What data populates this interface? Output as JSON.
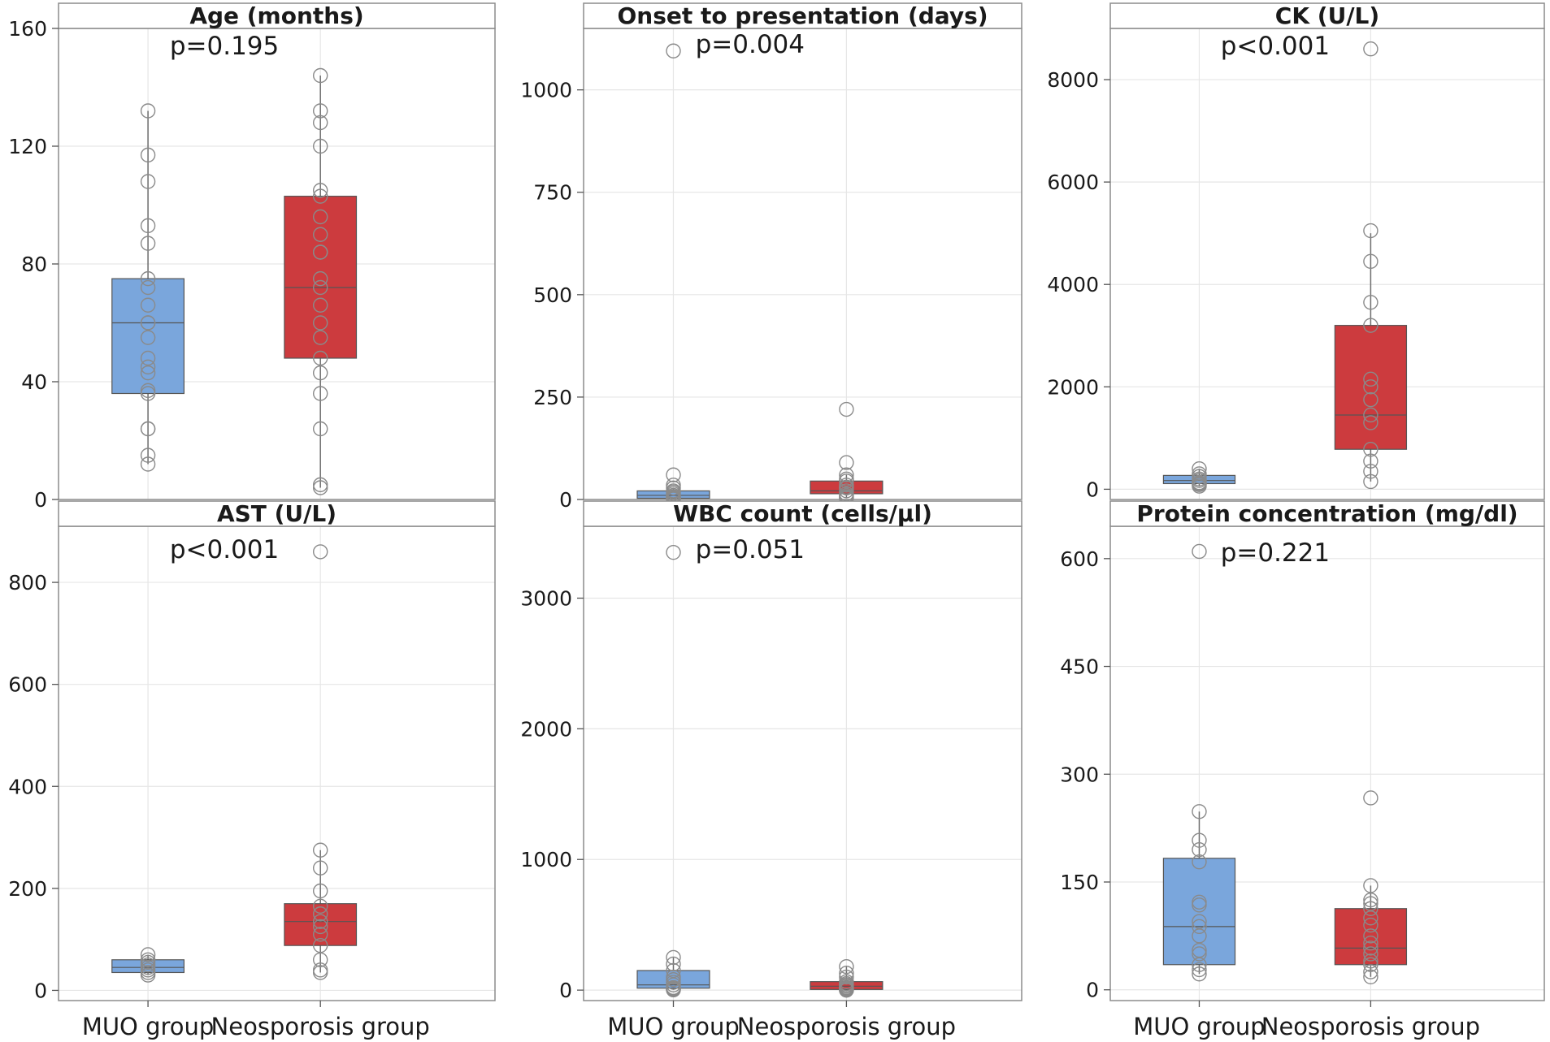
{
  "chart_data": [
    {
      "type": "boxplot",
      "title": "Age (months)",
      "p_value": "p=0.195",
      "ylim": [
        0,
        160
      ],
      "yticks": [
        0,
        40,
        80,
        120,
        160
      ],
      "categories": [
        "MUO group",
        "Neosporosis group"
      ],
      "colors": [
        "#7aa6dc",
        "#cc3b3e"
      ],
      "groups": [
        {
          "name": "MUO group",
          "q1": 36,
          "median": 60,
          "q3": 75,
          "whisker_low": 12,
          "whisker_high": 132,
          "points": [
            12,
            15,
            24,
            24,
            36,
            37,
            43,
            45,
            48,
            55,
            60,
            60,
            66,
            72,
            75,
            87,
            93,
            108,
            117,
            132
          ]
        },
        {
          "name": "Neosporosis group",
          "q1": 48,
          "median": 72,
          "q3": 103,
          "whisker_low": 4,
          "whisker_high": 144,
          "points": [
            4,
            5,
            24,
            36,
            43,
            48,
            55,
            60,
            66,
            72,
            75,
            84,
            84,
            90,
            96,
            103,
            105,
            120,
            128,
            132,
            144
          ]
        }
      ]
    },
    {
      "type": "boxplot",
      "title": "Onset to presentation (days)",
      "p_value": "p=0.004",
      "ylim": [
        0,
        1150
      ],
      "yticks": [
        0,
        250,
        500,
        750,
        1000
      ],
      "categories": [
        "MUO group",
        "Neosporosis group"
      ],
      "colors": [
        "#7aa6dc",
        "#cc3b3e"
      ],
      "groups": [
        {
          "name": "MUO group",
          "q1": 3,
          "median": 10,
          "q3": 21,
          "whisker_low": 1,
          "whisker_high": 28,
          "points": [
            1,
            2,
            3,
            3,
            5,
            7,
            10,
            14,
            18,
            21,
            28,
            35,
            60,
            1095
          ]
        },
        {
          "name": "Neosporosis group",
          "q1": 14,
          "median": 21,
          "q3": 45,
          "whisker_low": 3,
          "whisker_high": 60,
          "points": [
            3,
            5,
            7,
            10,
            14,
            21,
            28,
            30,
            35,
            45,
            50,
            60,
            90,
            220
          ]
        }
      ]
    },
    {
      "type": "boxplot",
      "title": "CK (U/L)",
      "p_value": "p<0.001",
      "ylim": [
        -200,
        9000
      ],
      "yticks": [
        0,
        2000,
        4000,
        6000,
        8000
      ],
      "categories": [
        "MUO group",
        "Neosporosis group"
      ],
      "colors": [
        "#7aa6dc",
        "#cc3b3e"
      ],
      "groups": [
        {
          "name": "MUO group",
          "q1": 110,
          "median": 170,
          "q3": 270,
          "whisker_low": 60,
          "whisker_high": 400,
          "points": [
            60,
            90,
            110,
            130,
            170,
            200,
            250,
            300,
            400
          ]
        },
        {
          "name": "Neosporosis group",
          "q1": 780,
          "median": 1450,
          "q3": 3200,
          "whisker_low": 150,
          "whisker_high": 5000,
          "points": [
            150,
            350,
            550,
            780,
            1300,
            1450,
            1750,
            2000,
            2150,
            3200,
            3650,
            4450,
            5050,
            8600
          ]
        }
      ]
    },
    {
      "type": "boxplot",
      "title": "AST (U/L)",
      "p_value": "p<0.001",
      "ylim": [
        -20,
        910
      ],
      "yticks": [
        0,
        200,
        400,
        600,
        800
      ],
      "categories": [
        "MUO group",
        "Neosporosis group"
      ],
      "colors": [
        "#7aa6dc",
        "#cc3b3e"
      ],
      "groups": [
        {
          "name": "MUO group",
          "q1": 35,
          "median": 45,
          "q3": 60,
          "whisker_low": 30,
          "whisker_high": 70,
          "points": [
            30,
            35,
            40,
            45,
            50,
            55,
            60,
            70
          ]
        },
        {
          "name": "Neosporosis group",
          "q1": 88,
          "median": 135,
          "q3": 170,
          "whisker_low": 35,
          "whisker_high": 275,
          "points": [
            35,
            40,
            60,
            88,
            110,
            125,
            135,
            150,
            165,
            195,
            240,
            275,
            860
          ]
        }
      ]
    },
    {
      "type": "boxplot",
      "title": "WBC count (cells/μl)",
      "p_value": "p=0.051",
      "ylim": [
        -80,
        3550
      ],
      "yticks": [
        0,
        1000,
        2000,
        3000
      ],
      "categories": [
        "MUO group",
        "Neosporosis group"
      ],
      "colors": [
        "#7aa6dc",
        "#cc3b3e"
      ],
      "groups": [
        {
          "name": "MUO group",
          "q1": 15,
          "median": 40,
          "q3": 150,
          "whisker_low": 2,
          "whisker_high": 250,
          "points": [
            2,
            5,
            10,
            15,
            20,
            40,
            60,
            80,
            100,
            150,
            200,
            250,
            3350
          ]
        },
        {
          "name": "Neosporosis group",
          "q1": 5,
          "median": 30,
          "q3": 65,
          "whisker_low": 0,
          "whisker_high": 180,
          "points": [
            0,
            0,
            2,
            5,
            8,
            10,
            15,
            20,
            30,
            40,
            50,
            65,
            100,
            130,
            180
          ]
        }
      ]
    },
    {
      "type": "boxplot",
      "title": "Protein concentration (mg/dl)",
      "p_value": "p=0.221",
      "ylim": [
        -15,
        645
      ],
      "yticks": [
        0,
        150,
        300,
        450,
        600
      ],
      "categories": [
        "MUO group",
        "Neosporosis group"
      ],
      "colors": [
        "#7aa6dc",
        "#cc3b3e"
      ],
      "groups": [
        {
          "name": "MUO group",
          "q1": 35,
          "median": 88,
          "q3": 183,
          "whisker_low": 22,
          "whisker_high": 248,
          "points": [
            22,
            28,
            35,
            50,
            55,
            75,
            88,
            95,
            118,
            122,
            178,
            195,
            208,
            248,
            610
          ]
        },
        {
          "name": "Neosporosis group",
          "q1": 35,
          "median": 58,
          "q3": 113,
          "whisker_low": 18,
          "whisker_high": 145,
          "points": [
            18,
            25,
            35,
            40,
            50,
            58,
            65,
            75,
            90,
            100,
            113,
            120,
            125,
            145,
            267
          ]
        }
      ]
    }
  ]
}
